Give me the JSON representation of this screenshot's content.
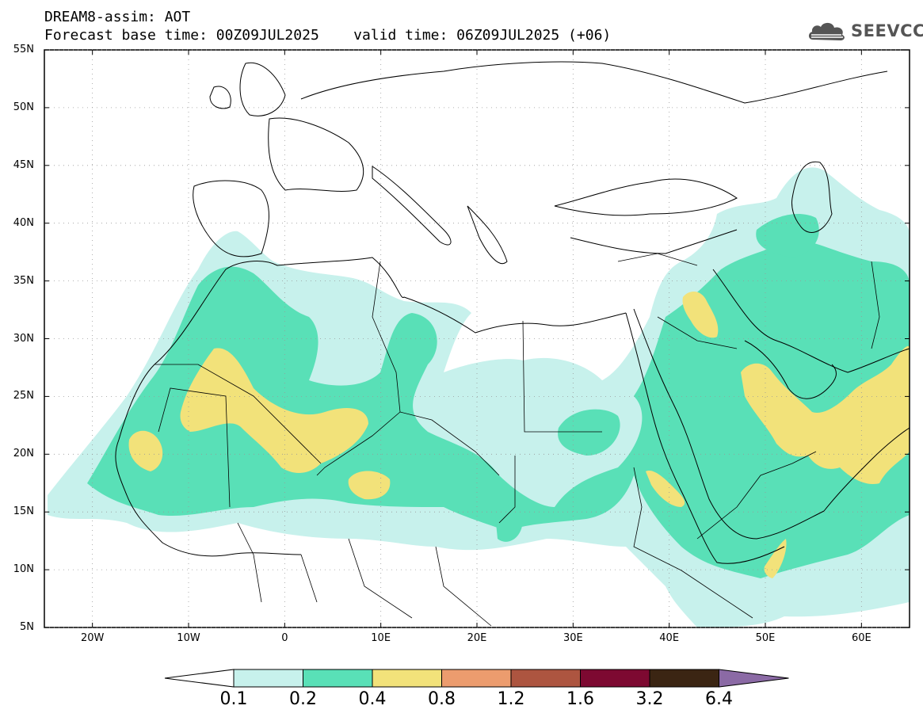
{
  "header": {
    "title_line1": "DREAM8-assim: AOT",
    "title_line2": "Forecast base time: 00Z09JUL2025    valid time: 06Z09JUL2025 (+06)",
    "logo_text": "SEEVCCC"
  },
  "axes": {
    "lat_labels": [
      "55N",
      "50N",
      "45N",
      "40N",
      "35N",
      "30N",
      "25N",
      "20N",
      "15N",
      "10N",
      "5N"
    ],
    "lon_labels": [
      "20W",
      "10W",
      "0",
      "10E",
      "20E",
      "30E",
      "40E",
      "50E",
      "60E"
    ]
  },
  "colorbar": {
    "labels": [
      "0.1",
      "0.2",
      "0.4",
      "0.8",
      "1.2",
      "1.6",
      "3.2",
      "6.4"
    ],
    "colors": [
      "#c7f1ec",
      "#59e0b7",
      "#f2e27a",
      "#ec9c6e",
      "#ad5540",
      "#7d0931",
      "#3b2513",
      "#8b6aa5"
    ],
    "under_color": "#ffffff"
  }
}
